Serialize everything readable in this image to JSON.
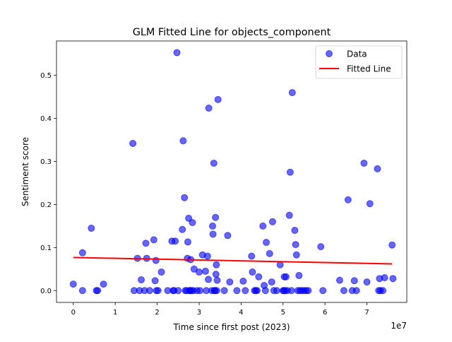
{
  "chart_data": {
    "type": "scatter",
    "title": "GLM Fitted Line for objects_component",
    "xlabel": "Time since first post (2023)",
    "ylabel": "Sentiment score",
    "x_offset_label": "1e7",
    "xlim": [
      -0.4,
      7.95
    ],
    "ylim": [
      -0.0275,
      0.58
    ],
    "x_ticks": [
      0,
      1,
      2,
      3,
      4,
      5,
      6,
      7
    ],
    "x_tick_labels": [
      "0",
      "1",
      "2",
      "3",
      "4",
      "5",
      "6",
      "7"
    ],
    "y_ticks": [
      0.0,
      0.1,
      0.2,
      0.3,
      0.4,
      0.5
    ],
    "y_tick_labels": [
      "0.0",
      "0.1",
      "0.2",
      "0.3",
      "0.4",
      "0.5"
    ],
    "grid": false,
    "legend_position": "top-right",
    "colors": {
      "data": "#0000ff",
      "fit": "#ff0000"
    },
    "series": [
      {
        "name": "Data",
        "kind": "scatter",
        "color": "#0000ff",
        "points": [
          [
            0.0,
            0.015
          ],
          [
            0.22,
            0.0
          ],
          [
            0.22,
            0.088
          ],
          [
            0.43,
            0.145
          ],
          [
            0.55,
            0.0
          ],
          [
            0.58,
            0.0
          ],
          [
            0.72,
            0.015
          ],
          [
            1.42,
            0.342
          ],
          [
            1.45,
            0.0
          ],
          [
            1.53,
            0.075
          ],
          [
            1.58,
            0.0
          ],
          [
            1.62,
            0.025
          ],
          [
            1.7,
            0.0
          ],
          [
            1.73,
            0.11
          ],
          [
            1.75,
            0.075
          ],
          [
            1.82,
            0.0
          ],
          [
            1.92,
            0.118
          ],
          [
            1.95,
            0.023
          ],
          [
            1.97,
            0.07
          ],
          [
            1.98,
            0.0
          ],
          [
            2.02,
            0.0
          ],
          [
            2.1,
            0.043
          ],
          [
            2.25,
            0.0
          ],
          [
            2.35,
            0.115
          ],
          [
            2.38,
            0.0
          ],
          [
            2.4,
            0.0
          ],
          [
            2.43,
            0.115
          ],
          [
            2.47,
            0.553
          ],
          [
            2.5,
            0.0
          ],
          [
            2.6,
            0.142
          ],
          [
            2.62,
            0.348
          ],
          [
            2.65,
            0.216
          ],
          [
            2.67,
            0.0
          ],
          [
            2.7,
            0.0
          ],
          [
            2.72,
            0.075
          ],
          [
            2.73,
            0.113
          ],
          [
            2.75,
            0.168
          ],
          [
            2.77,
            0.0
          ],
          [
            2.78,
            0.0
          ],
          [
            2.8,
            0.072
          ],
          [
            2.82,
            0.0
          ],
          [
            2.84,
            0.158
          ],
          [
            2.86,
            0.0
          ],
          [
            2.88,
            0.05
          ],
          [
            2.95,
            0.0
          ],
          [
            3.0,
            0.043
          ],
          [
            3.02,
            0.0
          ],
          [
            3.08,
            0.083
          ],
          [
            3.15,
            0.045
          ],
          [
            3.17,
            0.0
          ],
          [
            3.2,
            0.08
          ],
          [
            3.23,
            0.424
          ],
          [
            3.22,
            0.026
          ],
          [
            3.3,
            0.0
          ],
          [
            3.32,
            0.15
          ],
          [
            3.33,
            0.131
          ],
          [
            3.35,
            0.296
          ],
          [
            3.36,
            0.0
          ],
          [
            3.38,
            0.0
          ],
          [
            3.39,
            0.17
          ],
          [
            3.4,
            0.038
          ],
          [
            3.41,
            0.06
          ],
          [
            3.42,
            0.0
          ],
          [
            3.43,
            0.024
          ],
          [
            3.45,
            0.444
          ],
          [
            3.6,
            0.0
          ],
          [
            3.68,
            0.128
          ],
          [
            3.73,
            0.02
          ],
          [
            3.9,
            0.0
          ],
          [
            4.05,
            0.022
          ],
          [
            4.1,
            0.0
          ],
          [
            4.25,
            0.08
          ],
          [
            4.27,
            0.043
          ],
          [
            4.32,
            0.0
          ],
          [
            4.35,
            0.0
          ],
          [
            4.38,
            0.0
          ],
          [
            4.42,
            0.032
          ],
          [
            4.52,
            0.15
          ],
          [
            4.55,
            0.012
          ],
          [
            4.58,
            0.0
          ],
          [
            4.6,
            0.112
          ],
          [
            4.68,
            0.086
          ],
          [
            4.73,
            0.02
          ],
          [
            4.75,
            0.16
          ],
          [
            4.78,
            0.0
          ],
          [
            4.85,
            0.0
          ],
          [
            4.93,
            0.06
          ],
          [
            5.0,
            0.0
          ],
          [
            5.02,
            0.0
          ],
          [
            5.03,
            0.032
          ],
          [
            5.05,
            0.0
          ],
          [
            5.07,
            0.032
          ],
          [
            5.1,
            0.0
          ],
          [
            5.15,
            0.175
          ],
          [
            5.17,
            0.275
          ],
          [
            5.2,
            0.0
          ],
          [
            5.22,
            0.46
          ],
          [
            5.28,
            0.14
          ],
          [
            5.3,
            0.107
          ],
          [
            5.32,
            0.083
          ],
          [
            5.35,
            0.0
          ],
          [
            5.38,
            0.035
          ],
          [
            5.4,
            0.0
          ],
          [
            5.45,
            0.0
          ],
          [
            5.5,
            0.0
          ],
          [
            5.55,
            0.0
          ],
          [
            5.6,
            0.0
          ],
          [
            5.9,
            0.102
          ],
          [
            5.95,
            0.0
          ],
          [
            6.35,
            0.024
          ],
          [
            6.45,
            0.0
          ],
          [
            6.55,
            0.211
          ],
          [
            6.65,
            0.0
          ],
          [
            6.7,
            0.023
          ],
          [
            6.75,
            0.0
          ],
          [
            6.93,
            0.296
          ],
          [
            7.0,
            0.02
          ],
          [
            7.07,
            0.202
          ],
          [
            7.25,
            0.283
          ],
          [
            7.28,
            0.0
          ],
          [
            7.3,
            0.028
          ],
          [
            7.32,
            0.0
          ],
          [
            7.38,
            0.0
          ],
          [
            7.42,
            0.03
          ],
          [
            7.6,
            0.106
          ],
          [
            7.62,
            0.028
          ]
        ]
      },
      {
        "name": "Fitted Line",
        "kind": "line",
        "color": "#ff0000",
        "points": [
          [
            0.0,
            0.077
          ],
          [
            7.6,
            0.062
          ]
        ]
      }
    ]
  }
}
